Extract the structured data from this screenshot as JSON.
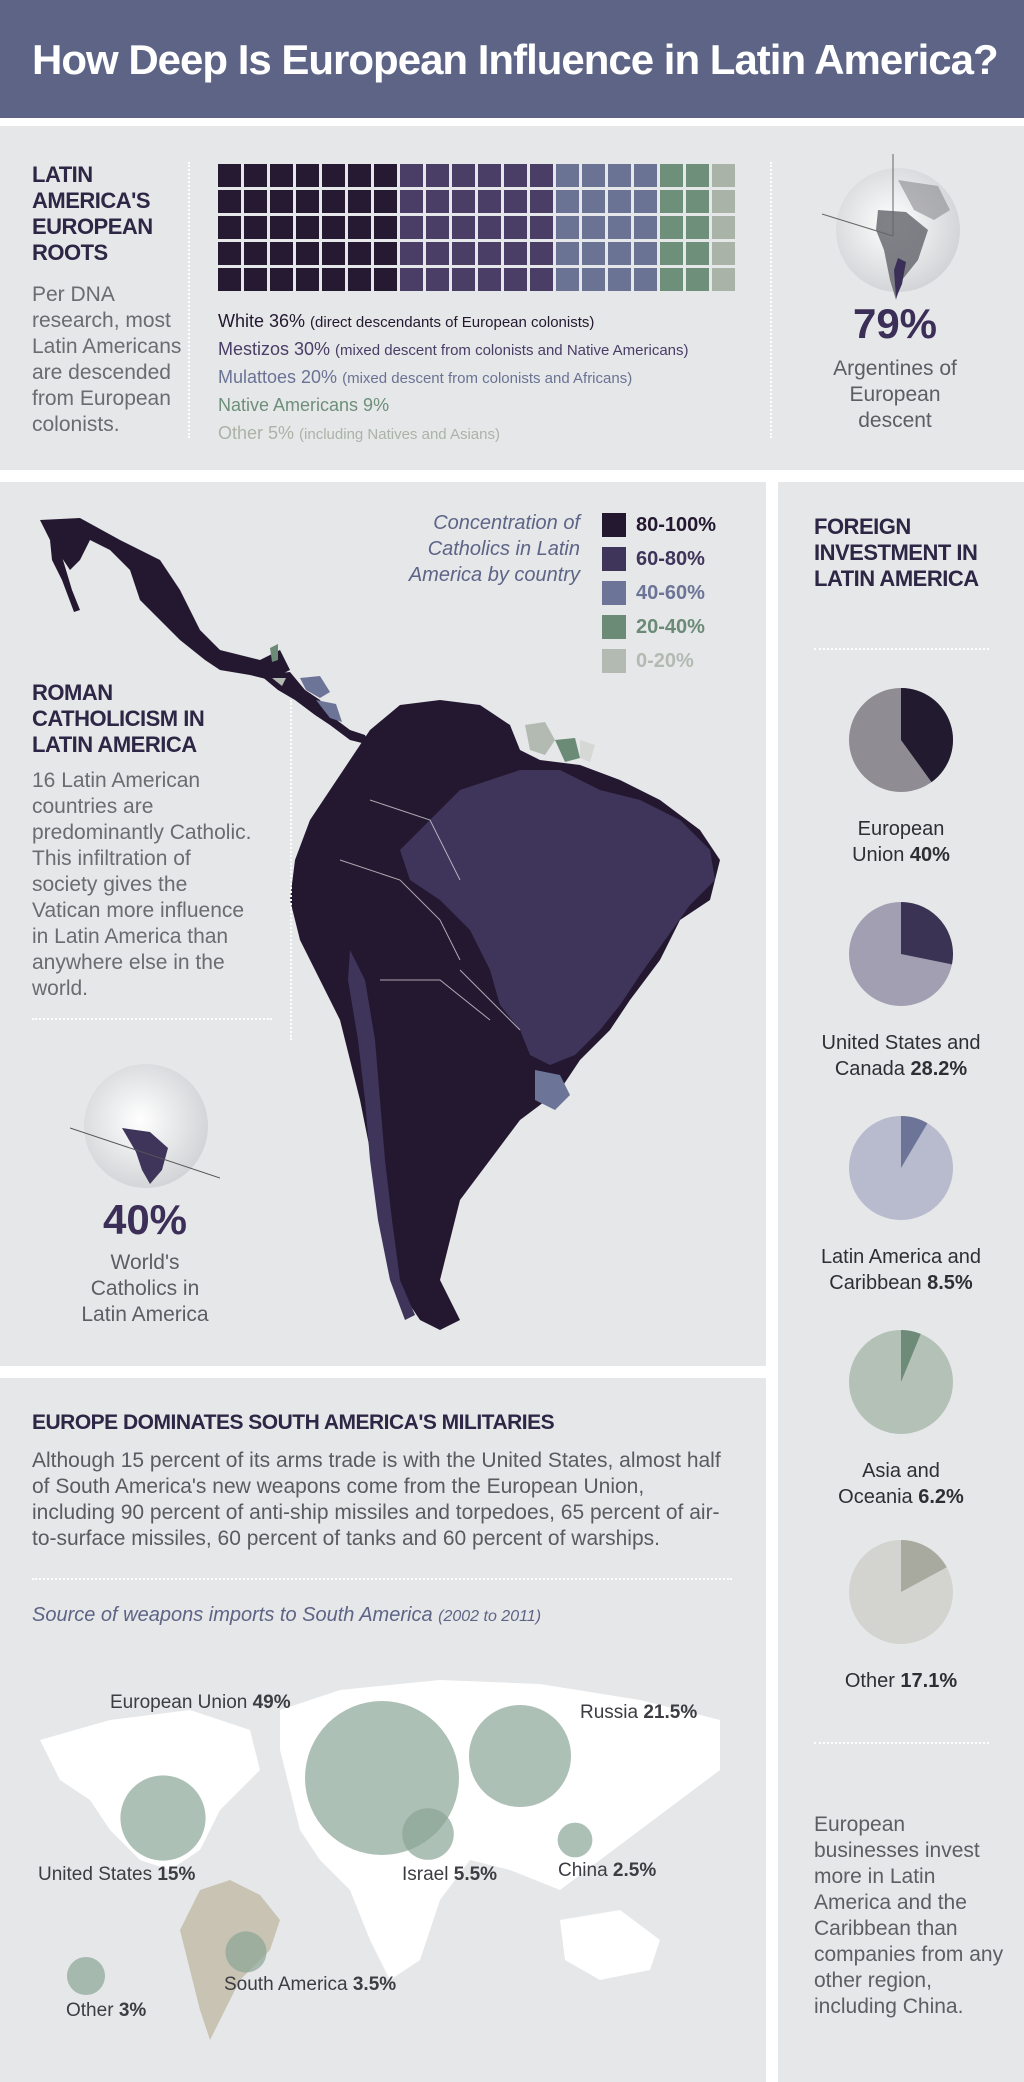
{
  "title": "How Deep Is European Influence in Latin America?",
  "roots": {
    "heading": "LATIN AMERICA'S EUROPEAN ROOTS",
    "text": "Per DNA research, most Latin Americans are descended from European colonists.",
    "legend": [
      {
        "label": "White 36%",
        "note": "(direct descendants of European colonists)",
        "color": "#261a33"
      },
      {
        "label": "Mestizos 30%",
        "note": "(mixed descent from colonists and Native Americans)",
        "color": "#4a3d66"
      },
      {
        "label": "Mulattoes 20%",
        "note": "(mixed descent from colonists and Africans)",
        "color": "#6a7394"
      },
      {
        "label": "Native Americans 9%",
        "note": "",
        "color": "#6e8f7a"
      },
      {
        "label": "Other 5%",
        "note": "(including Natives and Asians)",
        "color": "#aab3a8"
      }
    ],
    "stat_value": "79%",
    "stat_desc": "Argentines of European descent"
  },
  "catholic": {
    "heading": "ROMAN CATHOLICISM IN LATIN AMERICA",
    "text": "16 Latin American countries are predominantly Catholic. This infiltration of society gives the Vatican more influence in Latin America than anywhere else in the world.",
    "map_title": "Concentration of Catholics in Latin America by country",
    "legend": [
      {
        "label": "80-100%",
        "color": "#231830"
      },
      {
        "label": "60-80%",
        "color": "#3f345a"
      },
      {
        "label": "40-60%",
        "color": "#6c7598"
      },
      {
        "label": "20-40%",
        "color": "#6b8b77"
      },
      {
        "label": "0-20%",
        "color": "#b3bab2"
      }
    ],
    "stat_value": "40%",
    "stat_desc": "World's Catholics in Latin America"
  },
  "military": {
    "heading": "EUROPE DOMINATES SOUTH AMERICA'S MILITARIES",
    "text": "Although 15 percent of its arms trade is with the United States, almost half of South America's new weapons come from the European Union, including 90 percent of anti-ship missiles and torpedoes, 65 percent of air-to-surface missiles, 60 percent of tanks and 60 percent of warships.",
    "subtitle": "Source of weapons imports to South America",
    "subtitle_years": "(2002 to 2011)"
  },
  "investment": {
    "heading": "FOREIGN INVESTMENT IN LATIN AMERICA",
    "footer": "European businesses invest more in Latin America and the Caribbean than companies from any other region, including China."
  },
  "chart_data": [
    {
      "type": "waffle",
      "title": "LATIN AMERICA'S EUROPEAN ROOTS",
      "categories": [
        "White",
        "Mestizos",
        "Mulattoes",
        "Native Americans",
        "Other"
      ],
      "values": [
        36,
        30,
        20,
        9,
        5
      ],
      "unit": "%"
    },
    {
      "type": "pie",
      "title": "FOREIGN INVESTMENT IN LATIN AMERICA",
      "slices": [
        {
          "name_main": "European",
          "name_tail": "Union",
          "value": 40,
          "value_label": "40%",
          "color": "#221a2f",
          "bg": "#908c94"
        },
        {
          "name_main": "United States and",
          "name_tail": "Canada",
          "value": 28.2,
          "value_label": "28.2%",
          "color": "#3b3354",
          "bg": "#a39fb3"
        },
        {
          "name_main": "Latin America and",
          "name_tail": "Caribbean",
          "value": 8.5,
          "value_label": "8.5%",
          "color": "#6c7598",
          "bg": "#b8bbcd"
        },
        {
          "name_main": "Asia and",
          "name_tail": "Oceania",
          "value": 6.2,
          "value_label": "6.2%",
          "color": "#6d8b78",
          "bg": "#b3c1b6"
        },
        {
          "name_main": "",
          "name_tail": "Other",
          "value": 17.1,
          "value_label": "17.1%",
          "color": "#a8a99f",
          "bg": "#d3d4cf"
        }
      ]
    },
    {
      "type": "scatter",
      "title": "Source of weapons imports to South America",
      "subtitle": "(2002 to 2011)",
      "points": [
        {
          "name": "European Union",
          "value": 49,
          "value_label": "49%"
        },
        {
          "name": "Russia",
          "value": 21.5,
          "value_label": "21.5%"
        },
        {
          "name": "United States",
          "value": 15,
          "value_label": "15%"
        },
        {
          "name": "Israel",
          "value": 5.5,
          "value_label": "5.5%"
        },
        {
          "name": "China",
          "value": 2.5,
          "value_label": "2.5%"
        },
        {
          "name": "South America",
          "value": 3.5,
          "value_label": "3.5%"
        },
        {
          "name": "Other",
          "value": 3,
          "value_label": "3%"
        }
      ]
    }
  ]
}
